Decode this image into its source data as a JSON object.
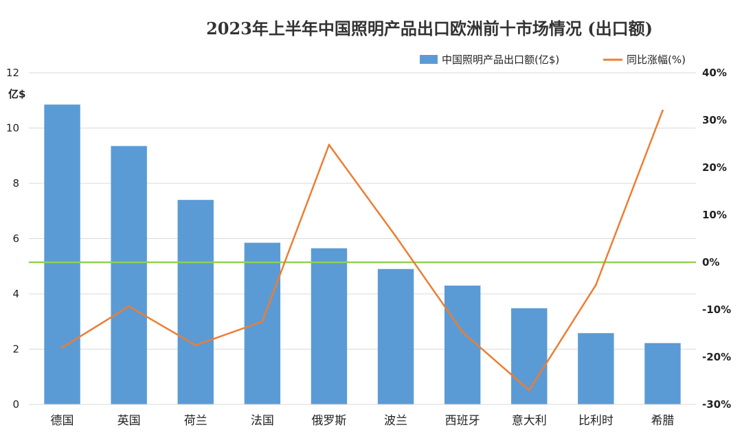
{
  "chart_data": {
    "type": "bar",
    "title": "2023年上半年中国照明产品出口欧洲前十市场情况 (出口额)",
    "categories": [
      "德国",
      "英国",
      "荷兰",
      "法国",
      "俄罗斯",
      "波兰",
      "西班牙",
      "意大利",
      "比利时",
      "希腊"
    ],
    "series": [
      {
        "name": "中国照明产品出口额(亿$)",
        "type": "bar",
        "axis": "left",
        "color": "#5b9bd5",
        "values": [
          10.85,
          9.35,
          7.4,
          5.85,
          5.65,
          4.9,
          4.3,
          3.48,
          2.58,
          2.22
        ]
      },
      {
        "name": "同比涨幅(%)",
        "type": "line",
        "axis": "right",
        "color": "#ed7d31",
        "values": [
          -18,
          -9.3,
          -17.5,
          -12.5,
          24.8,
          5.5,
          -14.7,
          -27,
          -4.8,
          32
        ]
      }
    ],
    "y_left": {
      "unit_label": "亿$",
      "ylim": [
        0,
        12
      ],
      "ticks": [
        0,
        2,
        4,
        6,
        8,
        10,
        12
      ],
      "tick_labels": [
        "0",
        "2",
        "4",
        "6",
        "8",
        "10",
        "12"
      ]
    },
    "y_right": {
      "ylim": [
        -30,
        40
      ],
      "ticks": [
        -30,
        -20,
        -10,
        0,
        10,
        20,
        30,
        40
      ],
      "tick_labels": [
        "-30%",
        "-20%",
        "-10%",
        "0%",
        "10%",
        "20%",
        "30%",
        "40%"
      ]
    },
    "zero_line": {
      "value": 0,
      "axis": "right",
      "color": "#92d050"
    },
    "grid": true,
    "legend": {
      "position": "top-right"
    }
  }
}
